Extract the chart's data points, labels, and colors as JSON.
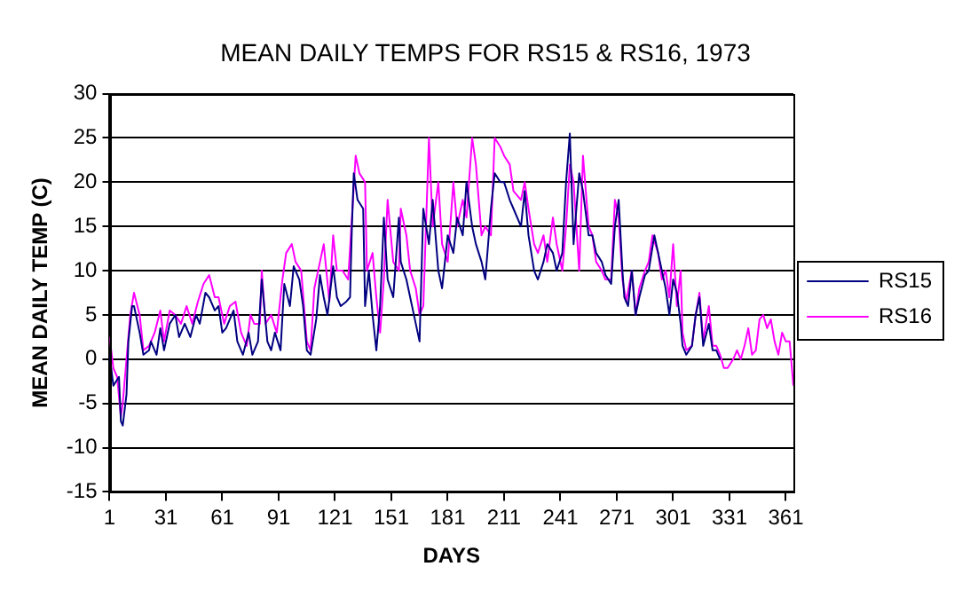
{
  "chart_data": {
    "type": "line",
    "title": "MEAN DAILY TEMPS FOR RS15 & RS16, 1973",
    "xlabel": "DAYS",
    "ylabel": "MEAN DAILY TEMP (C)",
    "xlim": [
      1,
      365
    ],
    "xticks": [
      1,
      31,
      61,
      91,
      121,
      151,
      181,
      211,
      241,
      271,
      301,
      331,
      361
    ],
    "ylim": [
      -15,
      30
    ],
    "yticks": [
      -15,
      -10,
      -5,
      0,
      5,
      10,
      15,
      20,
      25,
      30
    ],
    "grid": "y",
    "legend": "right",
    "marker": "none",
    "line_style": "solid",
    "series": [
      {
        "name": "RS15",
        "color": "#000080",
        "x": [
          1,
          3,
          6,
          7,
          8,
          10,
          11,
          13,
          14,
          17,
          19,
          22,
          23,
          26,
          28,
          30,
          33,
          36,
          38,
          41,
          44,
          47,
          49,
          52,
          54,
          57,
          59,
          61,
          63,
          67,
          69,
          72,
          75,
          77,
          80,
          82,
          85,
          87,
          89,
          92,
          94,
          97,
          99,
          102,
          104,
          106,
          108,
          111,
          113,
          115,
          117,
          120,
          122,
          124,
          127,
          129,
          130,
          131,
          133,
          136,
          137,
          139,
          141,
          143,
          145,
          147,
          149,
          152,
          155,
          156,
          159,
          161,
          164,
          166,
          168,
          171,
          173,
          176,
          178,
          181,
          184,
          186,
          189,
          191,
          194,
          196,
          199,
          201,
          204,
          206,
          209,
          211,
          214,
          216,
          220,
          222,
          224,
          227,
          229,
          232,
          234,
          237,
          239,
          242,
          244,
          246,
          248,
          251,
          253,
          256,
          258,
          260,
          263,
          265,
          268,
          270,
          272,
          274,
          275,
          277,
          279,
          281,
          283,
          286,
          288,
          291,
          293,
          295,
          297,
          299,
          301,
          303,
          305,
          306,
          308,
          311,
          313,
          315,
          317,
          320,
          322,
          324,
          326
        ],
        "values": [
          0.5,
          -3,
          -2,
          -7,
          -7.5,
          -4,
          2,
          6,
          6,
          3,
          0.5,
          1,
          2,
          0.5,
          3.5,
          1,
          4,
          5,
          2.5,
          4,
          2.5,
          5,
          4,
          7.5,
          7,
          5.5,
          6,
          3,
          3.5,
          5.5,
          2,
          0.5,
          3,
          0.5,
          2,
          9,
          2,
          1,
          3,
          1,
          8.5,
          6,
          10.5,
          9,
          6,
          1,
          0.5,
          4.5,
          9.5,
          7,
          5,
          10.5,
          7,
          6,
          6.5,
          7,
          15,
          21,
          18,
          17,
          6,
          10,
          5,
          1,
          6,
          16,
          9,
          7,
          16,
          11,
          9,
          7,
          4,
          2,
          17,
          13,
          18,
          10,
          8,
          14,
          12,
          16,
          14,
          20,
          15,
          13,
          11,
          9,
          17,
          21,
          20,
          20,
          18,
          17,
          15,
          19,
          14,
          10,
          9,
          11,
          13,
          12,
          10,
          12,
          20,
          25.5,
          13,
          21,
          19,
          14,
          14,
          12,
          11,
          9.5,
          8.5,
          15,
          18,
          10,
          7,
          6,
          10,
          5,
          7,
          9.5,
          10,
          14,
          12,
          10,
          8,
          5,
          9,
          7.5,
          4,
          1.5,
          0.5,
          1.5,
          5,
          7,
          1.5,
          4,
          1,
          1,
          0
        ]
      },
      {
        "name": "RS16",
        "color": "#ff00ff",
        "x": [
          1,
          3,
          5,
          7,
          8,
          10,
          12,
          14,
          17,
          19,
          22,
          25,
          28,
          30,
          33,
          36,
          39,
          42,
          45,
          48,
          51,
          54,
          57,
          59,
          62,
          65,
          68,
          71,
          74,
          76,
          78,
          81,
          82,
          84,
          87,
          90,
          93,
          95,
          98,
          100,
          103,
          106,
          108,
          110,
          113,
          115,
          118,
          120,
          122,
          125,
          128,
          130,
          132,
          134,
          137,
          138,
          141,
          143,
          145,
          147,
          149,
          152,
          155,
          156,
          159,
          161,
          164,
          166,
          168,
          171,
          173,
          176,
          178,
          181,
          184,
          186,
          189,
          191,
          194,
          196,
          199,
          201,
          204,
          206,
          209,
          211,
          214,
          216,
          220,
          222,
          224,
          227,
          229,
          232,
          234,
          237,
          239,
          242,
          244,
          246,
          248,
          251,
          253,
          256,
          258,
          260,
          263,
          265,
          268,
          270,
          272,
          274,
          276,
          279,
          281,
          283,
          286,
          288,
          290,
          293,
          295,
          297,
          299,
          301,
          303,
          305,
          306,
          308,
          311,
          313,
          315,
          317,
          320,
          322,
          324,
          326,
          328,
          330,
          333,
          335,
          337,
          339,
          341,
          343,
          345,
          347,
          349,
          351,
          353,
          355,
          357,
          359,
          361,
          363,
          364,
          365
        ],
        "values": [
          2.5,
          -1,
          -2,
          -6.5,
          -5,
          0,
          5,
          7.5,
          5,
          1,
          1.5,
          3,
          5.5,
          2,
          5.5,
          5,
          4,
          6,
          4,
          6.5,
          8.5,
          9.5,
          7,
          7,
          4,
          6,
          6.5,
          3,
          1.5,
          5,
          4,
          4,
          10,
          4,
          5,
          3,
          9,
          12,
          13,
          11,
          10,
          2,
          1,
          8,
          11,
          13,
          6.5,
          14,
          10,
          10,
          9,
          16,
          23,
          21,
          20,
          10,
          12,
          7,
          3,
          9,
          18,
          11,
          10,
          17,
          14,
          10,
          8,
          5,
          6,
          25,
          15,
          20,
          13,
          11,
          20,
          15,
          18,
          16,
          25,
          22,
          14,
          15,
          14,
          25,
          24,
          23,
          22,
          19,
          18,
          20,
          17,
          13,
          12,
          14,
          11,
          16,
          13,
          10,
          15,
          22,
          20,
          10,
          23,
          15,
          14,
          11,
          10,
          9,
          9,
          18,
          16,
          9,
          6.5,
          10,
          5,
          8,
          10,
          11,
          14,
          12,
          9,
          10,
          7,
          13,
          6,
          10,
          3,
          1,
          1.5,
          5,
          7.5,
          2,
          6,
          1.5,
          1.5,
          0.5,
          -1,
          -1,
          0,
          1,
          0,
          1.5,
          3.5,
          0.5,
          1,
          4.5,
          5,
          3.5,
          4.5,
          2,
          0.5,
          3,
          2,
          2,
          -0.5,
          -3
        ]
      }
    ]
  }
}
